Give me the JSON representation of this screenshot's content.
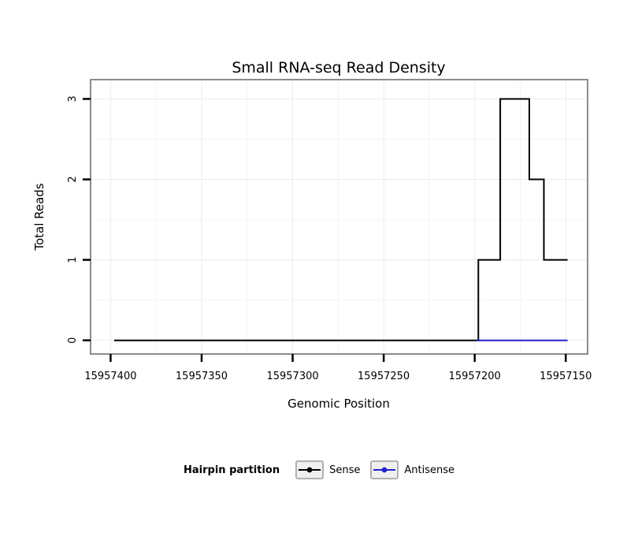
{
  "title": "Small RNA-seq Read Density",
  "chart_data": {
    "type": "line",
    "title": "Small RNA-seq Read Density",
    "xlabel": "Genomic Position",
    "ylabel": "Total Reads",
    "legend_title": "Hairpin partition",
    "legend_position": "bottom",
    "grid": true,
    "x_reversed": true,
    "xlim": [
      15957411,
      15957138
    ],
    "ylim": [
      -0.17,
      3.24
    ],
    "x_ticks": [
      15957400,
      15957350,
      15957300,
      15957250,
      15957200,
      15957150
    ],
    "x_tick_labels": [
      "15957400",
      "15957350",
      "15957300",
      "15957250",
      "15957200",
      "15957150"
    ],
    "y_ticks": [
      0,
      1,
      2,
      3
    ],
    "y_tick_labels": [
      "0",
      "1",
      "2",
      "3"
    ],
    "series": [
      {
        "name": "Sense",
        "color": "#000000",
        "points": [
          [
            15957398,
            0
          ],
          [
            15957198,
            0
          ],
          [
            15957198,
            1
          ],
          [
            15957186,
            1
          ],
          [
            15957186,
            3
          ],
          [
            15957170,
            3
          ],
          [
            15957170,
            2
          ],
          [
            15957162,
            2
          ],
          [
            15957162,
            1
          ],
          [
            15957149,
            1
          ]
        ]
      },
      {
        "name": "Antisense",
        "color": "#2222cc",
        "points": [
          [
            15957199,
            0
          ],
          [
            15957149,
            0
          ]
        ]
      }
    ]
  }
}
